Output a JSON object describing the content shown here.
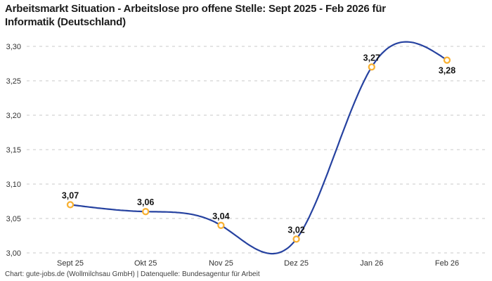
{
  "header": {
    "title": "Arbeitsmarkt Situation - Arbeitslose pro offene Stelle: Sept 2025 - Feb 2026 für\nInformatik (Deutschland)"
  },
  "footer": {
    "attribution": "Chart: gute-jobs.de (Wollmilchsau GmbH) | Datenquelle: Bundesagentur für Arbeit"
  },
  "chart_data": {
    "type": "line",
    "title": "Arbeitsmarkt Situation - Arbeitslose pro offene Stelle: Sept 2025 - Feb 2026 für Informatik (Deutschland)",
    "x_categories": [
      "Sept 25",
      "Okt 25",
      "Nov 25",
      "Dez 25",
      "Jan 26",
      "Feb 26"
    ],
    "values": [
      3.07,
      3.06,
      3.04,
      3.02,
      3.27,
      3.28
    ],
    "point_labels": [
      "3,07",
      "3,06",
      "3,04",
      "3,02",
      "3,27",
      "3,28"
    ],
    "label_positions": [
      "above",
      "above",
      "above",
      "above",
      "above",
      "below"
    ],
    "ylim": [
      3.0,
      3.3
    ],
    "yticks": [
      3.0,
      3.05,
      3.1,
      3.15,
      3.2,
      3.25,
      3.3
    ],
    "ytick_labels": [
      "3,00",
      "3,05",
      "3,10",
      "3,15",
      "3,20",
      "3,25",
      "3,30"
    ],
    "xlabel": "",
    "ylabel": "",
    "grid": "horizontal-dashed",
    "legend": "none",
    "curve": "natural-cubic-spline",
    "colors": {
      "line": "#2642a0",
      "marker_stroke": "#f8b133",
      "marker_fill": "#ffffff",
      "grid": "#c9c9c9",
      "tick_text": "#333333",
      "data_label": "#141414"
    }
  }
}
